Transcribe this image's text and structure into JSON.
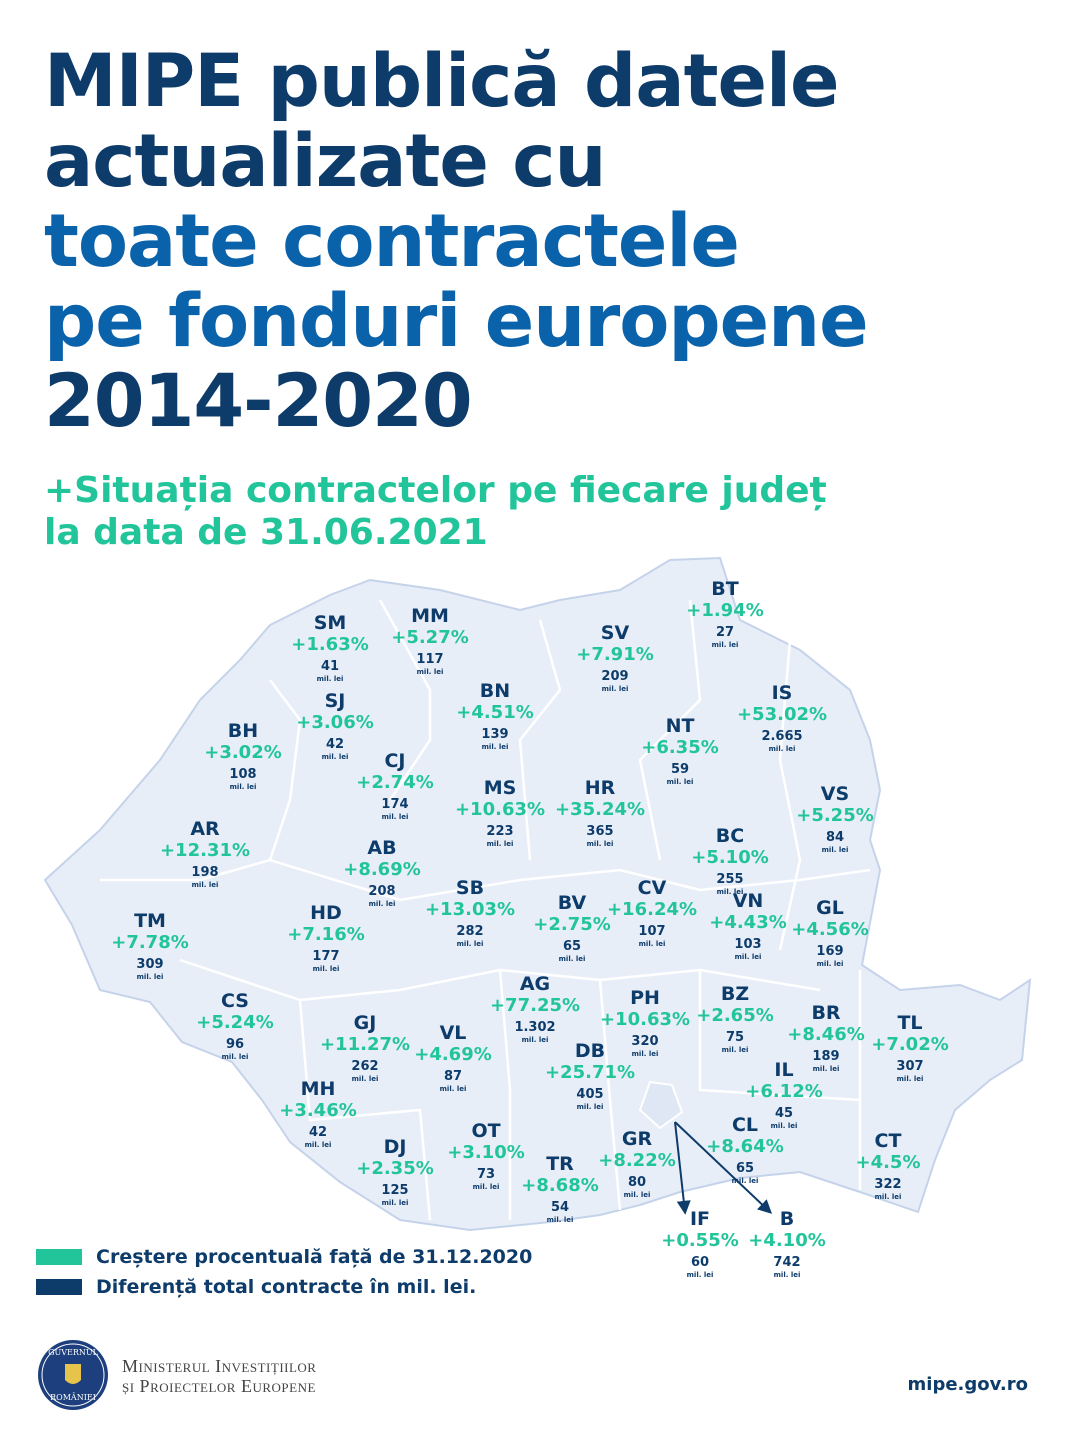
{
  "header": {
    "title_lines": [
      "MIPE publică datele",
      "actualizate cu",
      "toate contractele",
      "pe fonduri europene",
      "2014-2020"
    ],
    "subtitle_lines": [
      "+Situația contractelor pe fiecare județ",
      "la data de 31.06.2021"
    ]
  },
  "counties": [
    {
      "code": "SM",
      "change": "+1.63%",
      "amount": "41",
      "unit": "mil. lei"
    },
    {
      "code": "MM",
      "change": "+5.27%",
      "amount": "117",
      "unit": "mil. lei"
    },
    {
      "code": "BT",
      "change": "+1.94%",
      "amount": "27",
      "unit": "mil. lei"
    },
    {
      "code": "SV",
      "change": "+7.91%",
      "amount": "209",
      "unit": "mil. lei"
    },
    {
      "code": "SJ",
      "change": "+3.06%",
      "amount": "42",
      "unit": "mil. lei"
    },
    {
      "code": "BN",
      "change": "+4.51%",
      "amount": "139",
      "unit": "mil. lei"
    },
    {
      "code": "BH",
      "change": "+3.02%",
      "amount": "108",
      "unit": "mil. lei"
    },
    {
      "code": "CJ",
      "change": "+2.74%",
      "amount": "174",
      "unit": "mil. lei"
    },
    {
      "code": "NT",
      "change": "+6.35%",
      "amount": "59",
      "unit": "mil. lei"
    },
    {
      "code": "IS",
      "change": "+53.02%",
      "amount": "2.665",
      "unit": "mil. lei"
    },
    {
      "code": "MS",
      "change": "+10.63%",
      "amount": "223",
      "unit": "mil. lei"
    },
    {
      "code": "HR",
      "change": "+35.24%",
      "amount": "365",
      "unit": "mil. lei"
    },
    {
      "code": "AR",
      "change": "+12.31%",
      "amount": "198",
      "unit": "mil. lei"
    },
    {
      "code": "AB",
      "change": "+8.69%",
      "amount": "208",
      "unit": "mil. lei"
    },
    {
      "code": "BC",
      "change": "+5.10%",
      "amount": "255",
      "unit": "mil. lei"
    },
    {
      "code": "VS",
      "change": "+5.25%",
      "amount": "84",
      "unit": "mil. lei"
    },
    {
      "code": "TM",
      "change": "+7.78%",
      "amount": "309",
      "unit": "mil. lei"
    },
    {
      "code": "HD",
      "change": "+7.16%",
      "amount": "177",
      "unit": "mil. lei"
    },
    {
      "code": "SB",
      "change": "+13.03%",
      "amount": "282",
      "unit": "mil. lei"
    },
    {
      "code": "BV",
      "change": "+2.75%",
      "amount": "65",
      "unit": "mil. lei"
    },
    {
      "code": "CV",
      "change": "+16.24%",
      "amount": "107",
      "unit": "mil. lei"
    },
    {
      "code": "VN",
      "change": "+4.43%",
      "amount": "103",
      "unit": "mil. lei"
    },
    {
      "code": "GL",
      "change": "+4.56%",
      "amount": "169",
      "unit": "mil. lei"
    },
    {
      "code": "CS",
      "change": "+5.24%",
      "amount": "96",
      "unit": "mil. lei"
    },
    {
      "code": "GJ",
      "change": "+11.27%",
      "amount": "262",
      "unit": "mil. lei"
    },
    {
      "code": "VL",
      "change": "+4.69%",
      "amount": "87",
      "unit": "mil. lei"
    },
    {
      "code": "AG",
      "change": "+77.25%",
      "amount": "1.302",
      "unit": "mil. lei"
    },
    {
      "code": "PH",
      "change": "+10.63%",
      "amount": "320",
      "unit": "mil. lei"
    },
    {
      "code": "BZ",
      "change": "+2.65%",
      "amount": "75",
      "unit": "mil. lei"
    },
    {
      "code": "BR",
      "change": "+8.46%",
      "amount": "189",
      "unit": "mil. lei"
    },
    {
      "code": "TL",
      "change": "+7.02%",
      "amount": "307",
      "unit": "mil. lei"
    },
    {
      "code": "DB",
      "change": "+25.71%",
      "amount": "405",
      "unit": "mil. lei"
    },
    {
      "code": "IL",
      "change": "+6.12%",
      "amount": "45",
      "unit": "mil. lei"
    },
    {
      "code": "MH",
      "change": "+3.46%",
      "amount": "42",
      "unit": "mil. lei"
    },
    {
      "code": "DJ",
      "change": "+2.35%",
      "amount": "125",
      "unit": "mil. lei"
    },
    {
      "code": "OT",
      "change": "+3.10%",
      "amount": "73",
      "unit": "mil. lei"
    },
    {
      "code": "TR",
      "change": "+8.68%",
      "amount": "54",
      "unit": "mil. lei"
    },
    {
      "code": "GR",
      "change": "+8.22%",
      "amount": "80",
      "unit": "mil. lei"
    },
    {
      "code": "CL",
      "change": "+8.64%",
      "amount": "65",
      "unit": "mil. lei"
    },
    {
      "code": "CT",
      "change": "+4.5%",
      "amount": "322",
      "unit": "mil. lei"
    },
    {
      "code": "IF",
      "change": "+0.55%",
      "amount": "60",
      "unit": "mil. lei"
    },
    {
      "code": "B",
      "change": "+4.10%",
      "amount": "742",
      "unit": "mil. lei"
    }
  ],
  "legend": [
    {
      "label": "Creștere procentuală față de 31.12.2020",
      "color": "#22c49a"
    },
    {
      "label": "Diferență total contracte în mil. lei.",
      "color": "#0d3b6a"
    }
  ],
  "footer": {
    "logo_text": [
      "GUVERNUL",
      "ROMÂNIEI"
    ],
    "ministry_lines": [
      "Ministerul Investițiilor",
      "și Proiectelor Europene"
    ],
    "website": "mipe.gov.ro"
  }
}
